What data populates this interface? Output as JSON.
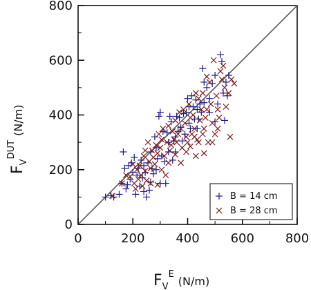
{
  "chart_data": {
    "type": "scatter",
    "title": "",
    "xlabel": {
      "main": "F",
      "sub": "V",
      "sup": "E",
      "unit": "(N/m)"
    },
    "ylabel": {
      "main": "F",
      "sub": "V",
      "sup": "DUT",
      "unit": "(N/m)"
    },
    "xlim": [
      0,
      800
    ],
    "ylim": [
      0,
      800
    ],
    "xticks": [
      "0",
      "200",
      "400",
      "600",
      "800"
    ],
    "yticks": [
      "0",
      "200",
      "400",
      "600",
      "800"
    ],
    "grid": false,
    "legend_position": "bottom-right",
    "reference_line": {
      "type": "identity",
      "color": "#666666"
    },
    "series": [
      {
        "name": "B = 14 cm",
        "marker": "plus",
        "color": "#1a1a8c",
        "points": [
          [
            100,
            100
          ],
          [
            120,
            105
          ],
          [
            130,
            100
          ],
          [
            150,
            110
          ],
          [
            160,
            150
          ],
          [
            165,
            265
          ],
          [
            170,
            205
          ],
          [
            175,
            130
          ],
          [
            185,
            215
          ],
          [
            190,
            165
          ],
          [
            200,
            190
          ],
          [
            205,
            245
          ],
          [
            210,
            110
          ],
          [
            215,
            180
          ],
          [
            220,
            205
          ],
          [
            225,
            140
          ],
          [
            230,
            235
          ],
          [
            235,
            170
          ],
          [
            240,
            120
          ],
          [
            245,
            190
          ],
          [
            250,
            100
          ],
          [
            255,
            225
          ],
          [
            260,
            125
          ],
          [
            265,
            265
          ],
          [
            270,
            205
          ],
          [
            275,
            185
          ],
          [
            280,
            320
          ],
          [
            285,
            280
          ],
          [
            290,
            240
          ],
          [
            295,
            395
          ],
          [
            300,
            410
          ],
          [
            300,
            150
          ],
          [
            305,
            250
          ],
          [
            310,
            340
          ],
          [
            315,
            230
          ],
          [
            320,
            150
          ],
          [
            325,
            335
          ],
          [
            330,
            300
          ],
          [
            335,
            395
          ],
          [
            340,
            375
          ],
          [
            345,
            235
          ],
          [
            350,
            305
          ],
          [
            355,
            320
          ],
          [
            360,
            395
          ],
          [
            365,
            340
          ],
          [
            370,
            390
          ],
          [
            375,
            355
          ],
          [
            380,
            305
          ],
          [
            385,
            405
          ],
          [
            390,
            330
          ],
          [
            395,
            410
          ],
          [
            400,
            460
          ],
          [
            405,
            430
          ],
          [
            410,
            350
          ],
          [
            415,
            470
          ],
          [
            420,
            430
          ],
          [
            425,
            385
          ],
          [
            430,
            455
          ],
          [
            435,
            420
          ],
          [
            440,
            385
          ],
          [
            445,
            440
          ],
          [
            450,
            410
          ],
          [
            455,
            570
          ],
          [
            460,
            520
          ],
          [
            470,
            500
          ],
          [
            480,
            460
          ],
          [
            490,
            515
          ],
          [
            500,
            545
          ],
          [
            510,
            440
          ],
          [
            520,
            620
          ],
          [
            525,
            595
          ],
          [
            530,
            480
          ],
          [
            535,
            380
          ],
          [
            540,
            520
          ],
          [
            545,
            470
          ],
          [
            550,
            545
          ],
          [
            180,
            145
          ],
          [
            195,
            225
          ],
          [
            240,
            215
          ],
          [
            265,
            155
          ],
          [
            285,
            200
          ],
          [
            330,
            265
          ],
          [
            355,
            265
          ],
          [
            405,
            370
          ],
          [
            435,
            350
          ],
          [
            460,
            445
          ],
          [
            480,
            410
          ],
          [
            500,
            375
          ]
        ]
      },
      {
        "name": "B = 28 cm",
        "marker": "x",
        "color": "#7a1a1a",
        "points": [
          [
            125,
            105
          ],
          [
            160,
            150
          ],
          [
            175,
            180
          ],
          [
            190,
            175
          ],
          [
            200,
            220
          ],
          [
            205,
            150
          ],
          [
            210,
            130
          ],
          [
            215,
            200
          ],
          [
            220,
            165
          ],
          [
            225,
            215
          ],
          [
            230,
            180
          ],
          [
            235,
            140
          ],
          [
            240,
            250
          ],
          [
            245,
            195
          ],
          [
            250,
            160
          ],
          [
            255,
            300
          ],
          [
            260,
            230
          ],
          [
            265,
            205
          ],
          [
            270,
            270
          ],
          [
            275,
            245
          ],
          [
            280,
            220
          ],
          [
            285,
            290
          ],
          [
            290,
            260
          ],
          [
            295,
            330
          ],
          [
            300,
            280
          ],
          [
            305,
            310
          ],
          [
            310,
            350
          ],
          [
            315,
            250
          ],
          [
            320,
            180
          ],
          [
            325,
            300
          ],
          [
            330,
            360
          ],
          [
            335,
            270
          ],
          [
            340,
            290
          ],
          [
            345,
            340
          ],
          [
            350,
            310
          ],
          [
            355,
            380
          ],
          [
            360,
            300
          ],
          [
            365,
            330
          ],
          [
            370,
            410
          ],
          [
            375,
            350
          ],
          [
            380,
            280
          ],
          [
            385,
            420
          ],
          [
            390,
            370
          ],
          [
            395,
            320
          ],
          [
            400,
            300
          ],
          [
            405,
            440
          ],
          [
            410,
            390
          ],
          [
            415,
            330
          ],
          [
            420,
            400
          ],
          [
            425,
            350
          ],
          [
            430,
            250
          ],
          [
            435,
            310
          ],
          [
            440,
            460
          ],
          [
            445,
            380
          ],
          [
            450,
            420
          ],
          [
            455,
            480
          ],
          [
            460,
            350
          ],
          [
            465,
            390
          ],
          [
            470,
            540
          ],
          [
            475,
            300
          ],
          [
            480,
            520
          ],
          [
            485,
            440
          ],
          [
            490,
            370
          ],
          [
            495,
            600
          ],
          [
            500,
            330
          ],
          [
            505,
            470
          ],
          [
            510,
            420
          ],
          [
            515,
            390
          ],
          [
            520,
            560
          ],
          [
            525,
            530
          ],
          [
            530,
            580
          ],
          [
            535,
            500
          ],
          [
            540,
            430
          ],
          [
            550,
            480
          ],
          [
            555,
            320
          ],
          [
            560,
            530
          ],
          [
            570,
            515
          ],
          [
            245,
            270
          ],
          [
            265,
            150
          ],
          [
            290,
            145
          ],
          [
            330,
            225
          ],
          [
            375,
            225
          ],
          [
            410,
            285
          ],
          [
            440,
            300
          ],
          [
            460,
            260
          ],
          [
            490,
            300
          ],
          [
            510,
            350
          ],
          [
            470,
            420
          ],
          [
            305,
            200
          ],
          [
            355,
            255
          ],
          [
            395,
            265
          ],
          [
            425,
            320
          ],
          [
            455,
            330
          ],
          [
            430,
            480
          ]
        ]
      }
    ]
  }
}
